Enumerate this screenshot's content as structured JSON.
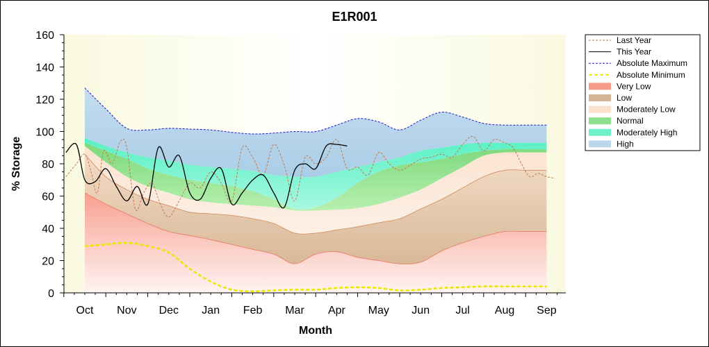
{
  "chart_data": {
    "type": "area",
    "title": "E1R001",
    "xlabel": "Month",
    "ylabel": "% Storage",
    "ylim": [
      0,
      160
    ],
    "yticks": [
      0,
      20,
      40,
      60,
      80,
      100,
      120,
      140,
      160
    ],
    "categories": [
      "Oct",
      "Nov",
      "Dec",
      "Jan",
      "Feb",
      "Mar",
      "Apr",
      "May",
      "Jun",
      "Jul",
      "Aug",
      "Sep"
    ],
    "bands_x": [
      0.0,
      0.5,
      1.0,
      1.5,
      2.0,
      2.5,
      3.0,
      3.5,
      4.0,
      4.5,
      5.0,
      5.5,
      6.0,
      6.5,
      7.0,
      7.5,
      8.0,
      8.5,
      9.0,
      9.5,
      10.0,
      10.5,
      11.0
    ],
    "bands": {
      "absolute_minimum": [
        29,
        30,
        31,
        29,
        25,
        15,
        7,
        2,
        1,
        1.5,
        2,
        2,
        3,
        3.5,
        3,
        1.5,
        2,
        3,
        3.5,
        4,
        4,
        4,
        4
      ],
      "very_low_top": [
        62,
        55,
        49,
        43,
        38,
        35.5,
        33,
        30,
        27,
        24,
        18,
        24,
        25.5,
        22,
        20,
        18,
        19,
        26,
        31,
        35,
        38,
        38,
        38
      ],
      "low_top": [
        86,
        72,
        64,
        58,
        54,
        50,
        49,
        48,
        46,
        43,
        37,
        37,
        39,
        41,
        43.5,
        46,
        52,
        58,
        65,
        72,
        76,
        76,
        76
      ],
      "moderately_low_top": [
        91,
        81,
        72,
        66,
        62,
        58,
        56,
        55,
        54,
        53,
        51,
        51,
        51.5,
        52.5,
        55,
        59,
        64,
        71,
        78,
        85,
        87,
        87,
        87
      ],
      "normal_top": [
        93,
        88,
        83,
        77,
        73,
        70,
        68,
        66,
        63,
        58,
        52,
        53,
        59,
        68,
        75,
        79,
        81,
        83,
        86,
        88,
        89,
        89,
        89
      ],
      "moderately_high_top": [
        96,
        91,
        87,
        84,
        82,
        79.5,
        78,
        77,
        75.5,
        73,
        72,
        72,
        75,
        78,
        81,
        84,
        88,
        90,
        92,
        93,
        93,
        93,
        93
      ],
      "absolute_maximum": [
        127,
        114,
        102,
        101,
        102,
        101.5,
        101,
        99.5,
        98.5,
        99,
        100,
        100,
        104,
        108,
        106,
        101,
        107,
        112,
        109,
        105,
        104,
        104,
        104
      ]
    },
    "series": [
      {
        "name": "Last Year",
        "x": [
          -0.45,
          -0.2,
          0.0,
          0.15,
          0.3,
          0.45,
          0.65,
          0.85,
          1.0,
          1.2,
          1.4,
          1.6,
          1.8,
          2.0,
          2.25,
          2.5,
          2.75,
          3.0,
          3.25,
          3.5,
          3.75,
          4.0,
          4.25,
          4.5,
          4.75,
          5.0,
          5.25,
          5.5,
          5.75,
          6.0,
          6.25,
          6.5,
          6.75,
          7.0,
          7.25,
          7.5,
          7.75,
          8.0,
          8.25,
          8.5,
          8.75,
          9.0,
          9.25,
          9.5,
          9.75,
          10.0,
          10.2,
          10.4,
          10.6,
          10.8,
          11.0,
          11.2
        ],
        "values": [
          72,
          80,
          86,
          75,
          62,
          88,
          80,
          94,
          90,
          52,
          62,
          68,
          55,
          47,
          57,
          68,
          65,
          75,
          68,
          57,
          90,
          84,
          73,
          92,
          79,
          57,
          84,
          80,
          84,
          95,
          77,
          78,
          73,
          87,
          80,
          76,
          79,
          83,
          84,
          86,
          84,
          92,
          97,
          88,
          95,
          93,
          90,
          80,
          72,
          74,
          72,
          71
        ]
      },
      {
        "name": "This Year",
        "x": [
          -0.45,
          -0.2,
          0.0,
          0.25,
          0.5,
          0.75,
          1.0,
          1.25,
          1.5,
          1.75,
          2.0,
          2.25,
          2.5,
          2.75,
          3.0,
          3.25,
          3.5,
          3.75,
          4.0,
          4.25,
          4.5,
          4.75,
          5.0,
          5.25,
          5.5,
          5.75,
          6.0,
          6.25
        ],
        "values": [
          87,
          92,
          70,
          69,
          77,
          66,
          57,
          66,
          55,
          90,
          78,
          85,
          62,
          58,
          71,
          77,
          55,
          62,
          70,
          73,
          62,
          53,
          76,
          80,
          77,
          91,
          92,
          91
        ]
      }
    ],
    "legend": {
      "placement": "right",
      "items": [
        {
          "label": "Last Year",
          "kind": "line",
          "color": "#c47a4a"
        },
        {
          "label": "This Year",
          "kind": "line",
          "color": "#000000"
        },
        {
          "label": "Absolute Maximum",
          "kind": "line",
          "color": "#1a1acc"
        },
        {
          "label": "Absolute Minimum",
          "kind": "line",
          "color": "#e8e800"
        },
        {
          "label": "Very Low",
          "kind": "fill",
          "color": "#f49a8a"
        },
        {
          "label": "Low",
          "kind": "fill",
          "color": "#d6b496"
        },
        {
          "label": "Moderately Low",
          "kind": "fill",
          "color": "#fbe0cc"
        },
        {
          "label": "Normal",
          "kind": "fill",
          "color": "#8ee08a"
        },
        {
          "label": "Moderately High",
          "kind": "fill",
          "color": "#6ef0c8"
        },
        {
          "label": "High",
          "kind": "fill",
          "color": "#bcd8ec"
        }
      ]
    },
    "colors": {
      "plot_background": "#fbfbe6",
      "very_low": "#f49a8a",
      "very_low_edge": "#e8785e",
      "low": "#d6b496",
      "low_edge": "#d08a5e",
      "moderately_low": "#fbe0cc",
      "normal": "#8ee08a",
      "moderately_high": "#6ef0c8",
      "high": "#bcd8ec",
      "absolute_maximum": "#1a1acc",
      "absolute_minimum": "#e8e800",
      "last_year": "#c47a4a",
      "this_year": "#000000"
    }
  }
}
